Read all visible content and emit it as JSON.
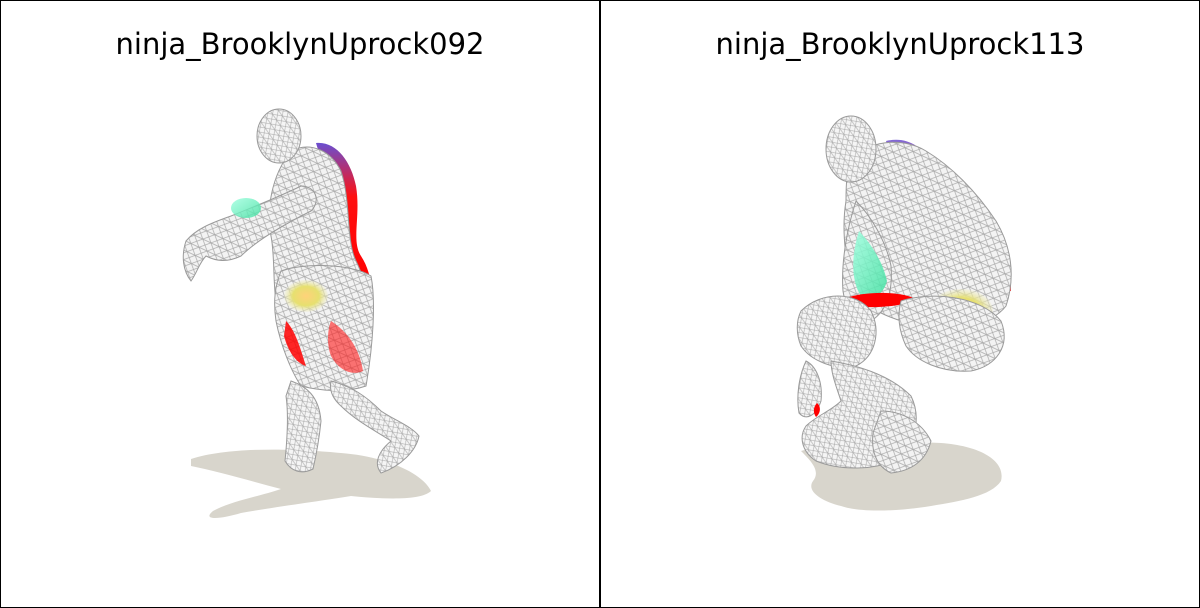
{
  "viewports": [
    {
      "title": "ninja_BrooklynUprock092",
      "mesh_color": "#f2f2f2",
      "wire_color": "#9a9a9a",
      "shadow_color": "#d8d5cc",
      "highlight_colors": [
        "#ff0000",
        "#5a3fbf",
        "#7fffd0",
        "#d9e07a"
      ]
    },
    {
      "title": "ninja_BrooklynUprock113",
      "mesh_color": "#f2f2f2",
      "wire_color": "#9a9a9a",
      "shadow_color": "#d8d5cc",
      "highlight_colors": [
        "#ff0000",
        "#5a3fbf",
        "#7fffd0",
        "#e8c07a"
      ]
    }
  ]
}
